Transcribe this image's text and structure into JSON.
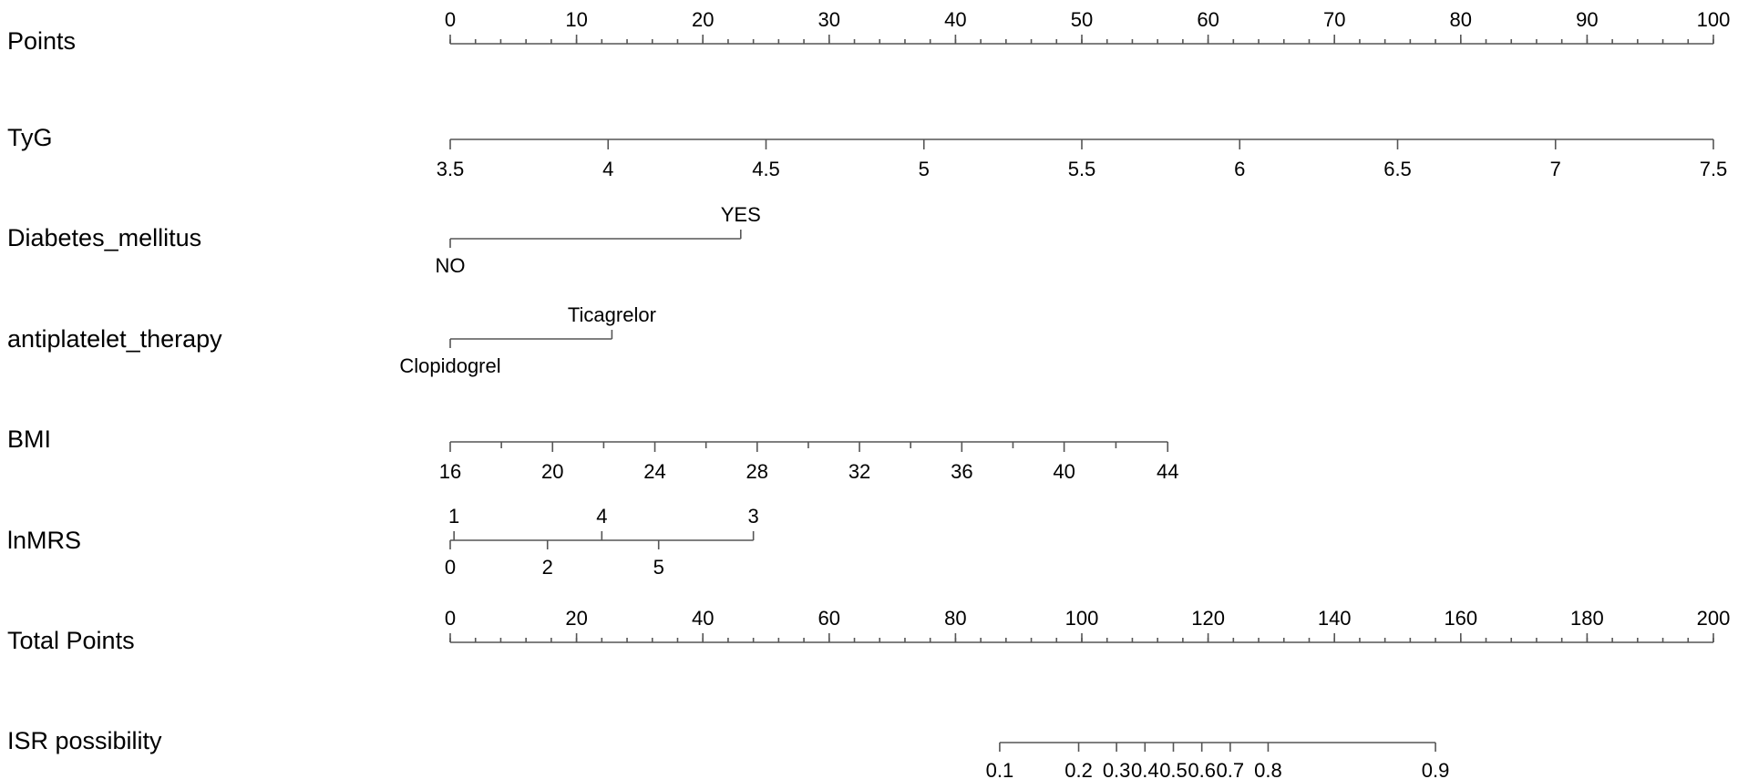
{
  "chart_data": {
    "type": "nomogram",
    "title": "",
    "rows": [
      {
        "label": "Points",
        "kind": "points",
        "ticks": [
          0,
          10,
          20,
          30,
          40,
          50,
          60,
          70,
          80,
          90,
          100
        ],
        "minor_ticks": [
          0,
          2,
          4,
          6,
          8,
          10,
          12,
          14,
          16,
          18,
          20,
          22,
          24,
          26,
          28,
          30,
          32,
          34,
          36,
          38,
          40,
          42,
          44,
          46,
          48,
          50,
          52,
          54,
          56,
          58,
          60,
          62,
          64,
          66,
          68,
          70,
          72,
          74,
          76,
          78,
          80,
          82,
          84,
          86,
          88,
          90,
          92,
          94,
          96,
          98,
          100
        ]
      },
      {
        "label": "TyG",
        "kind": "continuous",
        "values": [
          3.5,
          4,
          4.5,
          5,
          5.5,
          6,
          6.5,
          7,
          7.5
        ],
        "points": [
          0,
          12.5,
          25,
          37.5,
          50,
          62.5,
          75,
          87.5,
          100
        ]
      },
      {
        "label": "Diabetes_mellitus",
        "kind": "categorical",
        "levels": [
          {
            "name": "NO",
            "points": 0
          },
          {
            "name": "YES",
            "points": 23
          }
        ]
      },
      {
        "label": "antiplatelet_therapy",
        "kind": "categorical",
        "levels": [
          {
            "name": "Clopidogrel",
            "points": 0
          },
          {
            "name": "Ticagrelor",
            "points": 12.8
          }
        ]
      },
      {
        "label": "BMI",
        "kind": "continuous",
        "values": [
          16,
          20,
          24,
          28,
          32,
          36,
          40,
          44
        ],
        "points": [
          0,
          8.1,
          16.2,
          24.3,
          32.4,
          40.5,
          48.6,
          56.8
        ],
        "minor_values": [
          18,
          22,
          26,
          30,
          34,
          38,
          42
        ],
        "minor_points": [
          4.05,
          12.15,
          20.25,
          28.35,
          36.45,
          44.55,
          52.7
        ]
      },
      {
        "label": "lnMRS",
        "kind": "categorical",
        "levels": [
          {
            "name": "0",
            "points": 0
          },
          {
            "name": "1",
            "points": 0.3
          },
          {
            "name": "2",
            "points": 7.7
          },
          {
            "name": "4",
            "points": 12.0
          },
          {
            "name": "5",
            "points": 16.5
          },
          {
            "name": "3",
            "points": 24.0
          }
        ]
      },
      {
        "label": "Total Points",
        "kind": "total",
        "ticks": [
          0,
          20,
          40,
          60,
          80,
          100,
          120,
          140,
          160,
          180,
          200
        ],
        "minor_ticks": [
          0,
          4,
          8,
          12,
          16,
          20,
          24,
          28,
          32,
          36,
          40,
          44,
          48,
          52,
          56,
          60,
          64,
          68,
          72,
          76,
          80,
          84,
          88,
          92,
          96,
          100,
          104,
          108,
          112,
          116,
          120,
          124,
          128,
          132,
          136,
          140,
          144,
          148,
          152,
          156,
          160,
          164,
          168,
          172,
          176,
          180,
          184,
          188,
          192,
          196,
          200
        ]
      },
      {
        "label": "ISR possibility",
        "kind": "probability",
        "values": [
          0.1,
          0.2,
          0.3,
          0.4,
          0.5,
          0.6,
          0.7,
          0.8,
          0.9
        ],
        "tick_labels": [
          "0.1",
          "0.2",
          "0.3",
          "0.4",
          "0.5",
          "0.6",
          "0.7",
          "0.8",
          "0.9"
        ],
        "total_points": [
          87,
          99.5,
          105.5,
          110,
          114.5,
          119,
          123.5,
          129.5,
          156
        ]
      }
    ]
  }
}
